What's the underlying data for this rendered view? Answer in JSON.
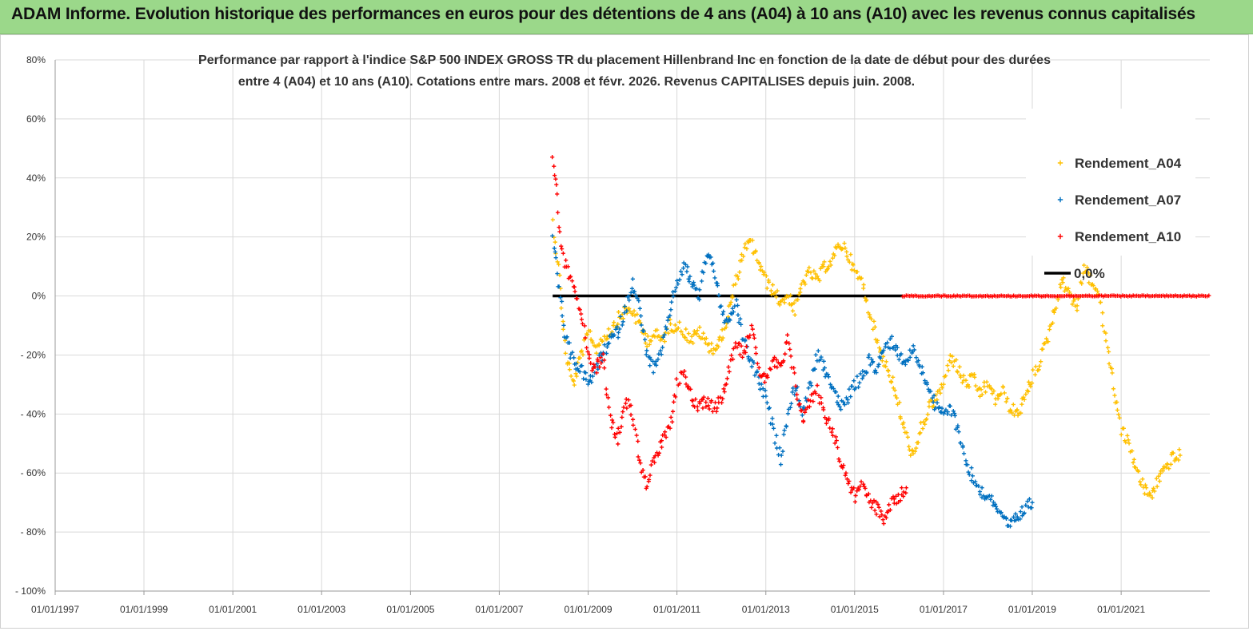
{
  "banner": {
    "title": "ADAM Informe. Evolution historique des performances en euros pour des détentions de 4 ans (A04) à 10 ans (A10) avec les revenus connus capitalisés"
  },
  "colors": {
    "banner_bg": "#9bd88a",
    "a04": "#ffc000",
    "a07": "#0070c0",
    "a10": "#ff0000",
    "zero_line": "#000000",
    "grid": "#d9d9d9"
  },
  "chart_data": {
    "type": "scatter",
    "title_line1": "Performance par rapport à l'indice S&P 500 INDEX GROSS TR  du placement Hillenbrand Inc en fonction de la date de début pour des durées",
    "title_line2": "entre 4 (A04) et 10 ans (A10). Cotations entre mars. 2008 et févr. 2026. Revenus CAPITALISES depuis juin. 2008.",
    "x_axis": {
      "type": "date",
      "min": "1997-01-01",
      "max": "2022-12-31"
    },
    "ylim": [
      -100,
      80
    ],
    "grid": {
      "horizontal": true,
      "vertical": true
    },
    "y_ticks": [
      {
        "value": 80,
        "label": "80%"
      },
      {
        "value": 60,
        "label": "60%"
      },
      {
        "value": 40,
        "label": "40%"
      },
      {
        "value": 20,
        "label": "20%"
      },
      {
        "value": 0,
        "label": "0%"
      },
      {
        "value": -20,
        "label": "- 20%"
      },
      {
        "value": -40,
        "label": "- 40%"
      },
      {
        "value": -60,
        "label": "- 60%"
      },
      {
        "value": -80,
        "label": "- 80%"
      },
      {
        "value": -100,
        "label": "- 100%"
      }
    ],
    "x_ticks": [
      {
        "date": "1997-01-01",
        "label": "01/01/1997"
      },
      {
        "date": "1999-01-01",
        "label": "01/01/1999"
      },
      {
        "date": "2001-01-01",
        "label": "01/01/2001"
      },
      {
        "date": "2003-01-01",
        "label": "01/01/2003"
      },
      {
        "date": "2005-01-01",
        "label": "01/01/2005"
      },
      {
        "date": "2007-01-01",
        "label": "01/01/2007"
      },
      {
        "date": "2009-01-01",
        "label": "01/01/2009"
      },
      {
        "date": "2011-01-01",
        "label": "01/01/2011"
      },
      {
        "date": "2013-01-01",
        "label": "01/01/2013"
      },
      {
        "date": "2015-01-01",
        "label": "01/01/2015"
      },
      {
        "date": "2017-01-01",
        "label": "01/01/2017"
      },
      {
        "date": "2019-01-01",
        "label": "01/01/2019"
      },
      {
        "date": "2021-01-01",
        "label": "01/01/2021"
      }
    ],
    "legend_position": "top-right",
    "series": [
      {
        "name": "Rendement_A04",
        "marker": "plus",
        "points": [
          [
            "2008-03-15",
            25
          ],
          [
            "2008-05-01",
            10
          ],
          [
            "2008-07-01",
            -20
          ],
          [
            "2008-09-01",
            -30
          ],
          [
            "2008-11-01",
            -20
          ],
          [
            "2009-01-15",
            -12
          ],
          [
            "2009-03-01",
            -18
          ],
          [
            "2009-05-01",
            -14
          ],
          [
            "2009-07-01",
            -12
          ],
          [
            "2009-09-01",
            -8
          ],
          [
            "2009-11-01",
            -5
          ],
          [
            "2010-01-01",
            -5
          ],
          [
            "2010-03-01",
            -10
          ],
          [
            "2010-05-01",
            -15
          ],
          [
            "2010-07-01",
            -13
          ],
          [
            "2010-09-01",
            -15
          ],
          [
            "2010-11-01",
            -10
          ],
          [
            "2011-01-01",
            -10
          ],
          [
            "2011-03-01",
            -12
          ],
          [
            "2011-05-01",
            -15
          ],
          [
            "2011-07-01",
            -12
          ],
          [
            "2011-09-01",
            -16
          ],
          [
            "2011-11-01",
            -18
          ],
          [
            "2012-01-01",
            -15
          ],
          [
            "2012-03-01",
            -5
          ],
          [
            "2012-05-01",
            5
          ],
          [
            "2012-07-01",
            15
          ],
          [
            "2012-09-01",
            18
          ],
          [
            "2012-11-01",
            12
          ],
          [
            "2013-01-01",
            5
          ],
          [
            "2013-03-01",
            2
          ],
          [
            "2013-05-01",
            -2
          ],
          [
            "2013-07-01",
            0
          ],
          [
            "2013-09-01",
            -5
          ],
          [
            "2013-11-01",
            5
          ],
          [
            "2014-01-01",
            8
          ],
          [
            "2014-03-01",
            5
          ],
          [
            "2014-05-01",
            10
          ],
          [
            "2014-07-01",
            12
          ],
          [
            "2014-09-01",
            18
          ],
          [
            "2014-11-01",
            15
          ],
          [
            "2015-01-01",
            8
          ],
          [
            "2015-03-01",
            5
          ],
          [
            "2015-05-01",
            -5
          ],
          [
            "2015-07-01",
            -15
          ],
          [
            "2015-09-01",
            -22
          ],
          [
            "2015-11-01",
            -28
          ],
          [
            "2016-01-01",
            -38
          ],
          [
            "2016-03-01",
            -48
          ],
          [
            "2016-05-01",
            -55
          ],
          [
            "2016-07-01",
            -45
          ],
          [
            "2016-09-01",
            -38
          ],
          [
            "2016-11-01",
            -35
          ],
          [
            "2017-01-01",
            -30
          ],
          [
            "2017-03-01",
            -20
          ],
          [
            "2017-05-01",
            -25
          ],
          [
            "2017-07-01",
            -30
          ],
          [
            "2017-09-01",
            -28
          ],
          [
            "2017-11-01",
            -33
          ],
          [
            "2018-01-01",
            -30
          ],
          [
            "2018-03-01",
            -35
          ],
          [
            "2018-05-01",
            -32
          ],
          [
            "2018-07-01",
            -38
          ],
          [
            "2018-09-01",
            -40
          ],
          [
            "2018-11-01",
            -35
          ],
          [
            "2019-01-01",
            -28
          ],
          [
            "2019-03-01",
            -22
          ],
          [
            "2019-05-01",
            -15
          ],
          [
            "2019-07-01",
            -5
          ],
          [
            "2019-09-01",
            5
          ],
          [
            "2019-11-01",
            2
          ],
          [
            "2020-01-01",
            -5
          ],
          [
            "2020-03-01",
            10
          ],
          [
            "2020-05-01",
            5
          ],
          [
            "2020-07-01",
            0
          ],
          [
            "2020-09-01",
            -15
          ],
          [
            "2020-11-01",
            -30
          ],
          [
            "2021-01-01",
            -45
          ],
          [
            "2021-03-01",
            -50
          ],
          [
            "2021-05-01",
            -58
          ],
          [
            "2021-07-01",
            -65
          ],
          [
            "2021-09-01",
            -68
          ],
          [
            "2021-11-01",
            -62
          ],
          [
            "2022-01-01",
            -58
          ],
          [
            "2022-03-01",
            -55
          ],
          [
            "2022-05-01",
            -54
          ]
        ]
      },
      {
        "name": "Rendement_A07",
        "marker": "plus",
        "points": [
          [
            "2008-03-15",
            20
          ],
          [
            "2008-05-01",
            5
          ],
          [
            "2008-07-01",
            -15
          ],
          [
            "2008-09-01",
            -22
          ],
          [
            "2008-11-01",
            -25
          ],
          [
            "2009-01-15",
            -30
          ],
          [
            "2009-03-01",
            -25
          ],
          [
            "2009-05-01",
            -20
          ],
          [
            "2009-07-01",
            -15
          ],
          [
            "2009-09-01",
            -12
          ],
          [
            "2009-11-01",
            -5
          ],
          [
            "2010-01-01",
            5
          ],
          [
            "2010-03-01",
            -5
          ],
          [
            "2010-05-01",
            -20
          ],
          [
            "2010-07-01",
            -25
          ],
          [
            "2010-09-01",
            -18
          ],
          [
            "2010-11-01",
            -5
          ],
          [
            "2011-01-01",
            5
          ],
          [
            "2011-03-01",
            10
          ],
          [
            "2011-05-01",
            5
          ],
          [
            "2011-07-01",
            0
          ],
          [
            "2011-09-01",
            15
          ],
          [
            "2011-11-01",
            10
          ],
          [
            "2012-01-01",
            -5
          ],
          [
            "2012-03-01",
            -10
          ],
          [
            "2012-05-01",
            -2
          ],
          [
            "2012-07-01",
            -15
          ],
          [
            "2012-09-01",
            -22
          ],
          [
            "2012-11-01",
            -28
          ],
          [
            "2013-01-01",
            -35
          ],
          [
            "2013-03-01",
            -45
          ],
          [
            "2013-05-01",
            -55
          ],
          [
            "2013-07-01",
            -40
          ],
          [
            "2013-09-01",
            -30
          ],
          [
            "2013-11-01",
            -40
          ],
          [
            "2014-01-01",
            -30
          ],
          [
            "2014-03-01",
            -20
          ],
          [
            "2014-05-01",
            -25
          ],
          [
            "2014-07-01",
            -30
          ],
          [
            "2014-09-01",
            -38
          ],
          [
            "2014-11-01",
            -35
          ],
          [
            "2015-01-01",
            -30
          ],
          [
            "2015-03-01",
            -28
          ],
          [
            "2015-05-01",
            -22
          ],
          [
            "2015-07-01",
            -25
          ],
          [
            "2015-09-01",
            -18
          ],
          [
            "2015-11-01",
            -15
          ],
          [
            "2016-01-01",
            -20
          ],
          [
            "2016-03-01",
            -22
          ],
          [
            "2016-05-01",
            -18
          ],
          [
            "2016-07-01",
            -25
          ],
          [
            "2016-09-01",
            -30
          ],
          [
            "2016-11-01",
            -38
          ],
          [
            "2017-01-01",
            -40
          ],
          [
            "2017-03-01",
            -38
          ],
          [
            "2017-05-01",
            -45
          ],
          [
            "2017-07-01",
            -55
          ],
          [
            "2017-09-01",
            -62
          ],
          [
            "2017-11-01",
            -66
          ],
          [
            "2018-01-01",
            -68
          ],
          [
            "2018-03-01",
            -70
          ],
          [
            "2018-05-01",
            -76
          ],
          [
            "2018-07-01",
            -78
          ],
          [
            "2018-09-01",
            -75
          ],
          [
            "2018-11-01",
            -72
          ],
          [
            "2019-01-01",
            -70
          ]
        ]
      },
      {
        "name": "Rendement_A10",
        "marker": "plus",
        "points": [
          [
            "2008-03-15",
            48
          ],
          [
            "2008-04-15",
            38
          ],
          [
            "2008-05-15",
            20
          ],
          [
            "2008-07-01",
            10
          ],
          [
            "2008-09-01",
            5
          ],
          [
            "2008-11-01",
            -5
          ],
          [
            "2009-01-15",
            -22
          ],
          [
            "2009-03-01",
            -25
          ],
          [
            "2009-05-01",
            -20
          ],
          [
            "2009-07-01",
            -42
          ],
          [
            "2009-09-01",
            -48
          ],
          [
            "2009-11-01",
            -35
          ],
          [
            "2010-01-01",
            -40
          ],
          [
            "2010-03-01",
            -55
          ],
          [
            "2010-05-01",
            -65
          ],
          [
            "2010-07-01",
            -55
          ],
          [
            "2010-09-01",
            -50
          ],
          [
            "2010-11-01",
            -45
          ],
          [
            "2011-01-01",
            -30
          ],
          [
            "2011-03-01",
            -25
          ],
          [
            "2011-05-01",
            -35
          ],
          [
            "2011-07-01",
            -38
          ],
          [
            "2011-09-01",
            -35
          ],
          [
            "2011-11-01",
            -38
          ],
          [
            "2012-01-01",
            -35
          ],
          [
            "2012-03-01",
            -25
          ],
          [
            "2012-05-01",
            -15
          ],
          [
            "2012-07-01",
            -20
          ],
          [
            "2012-09-01",
            -10
          ],
          [
            "2012-11-01",
            -25
          ],
          [
            "2013-01-01",
            -28
          ],
          [
            "2013-03-01",
            -22
          ],
          [
            "2013-05-01",
            -25
          ],
          [
            "2013-07-01",
            -15
          ],
          [
            "2013-09-01",
            -30
          ],
          [
            "2013-11-01",
            -42
          ],
          [
            "2014-01-01",
            -35
          ],
          [
            "2014-03-01",
            -32
          ],
          [
            "2014-05-01",
            -40
          ],
          [
            "2014-07-01",
            -45
          ],
          [
            "2014-09-01",
            -55
          ],
          [
            "2014-11-01",
            -62
          ],
          [
            "2015-01-01",
            -68
          ],
          [
            "2015-03-01",
            -62
          ],
          [
            "2015-05-01",
            -70
          ],
          [
            "2015-07-01",
            -72
          ],
          [
            "2015-09-01",
            -76
          ],
          [
            "2015-11-01",
            -70
          ],
          [
            "2016-01-01",
            -68
          ],
          [
            "2016-03-01",
            -65
          ]
        ]
      },
      {
        "name": "0,0%",
        "marker": "line",
        "segments": [
          [
            "2008-03-15",
            "2016-02-01"
          ]
        ]
      }
    ],
    "a10_zero_band": {
      "start": "2016-02-01",
      "end": "2022-12-31",
      "value": 0
    }
  }
}
